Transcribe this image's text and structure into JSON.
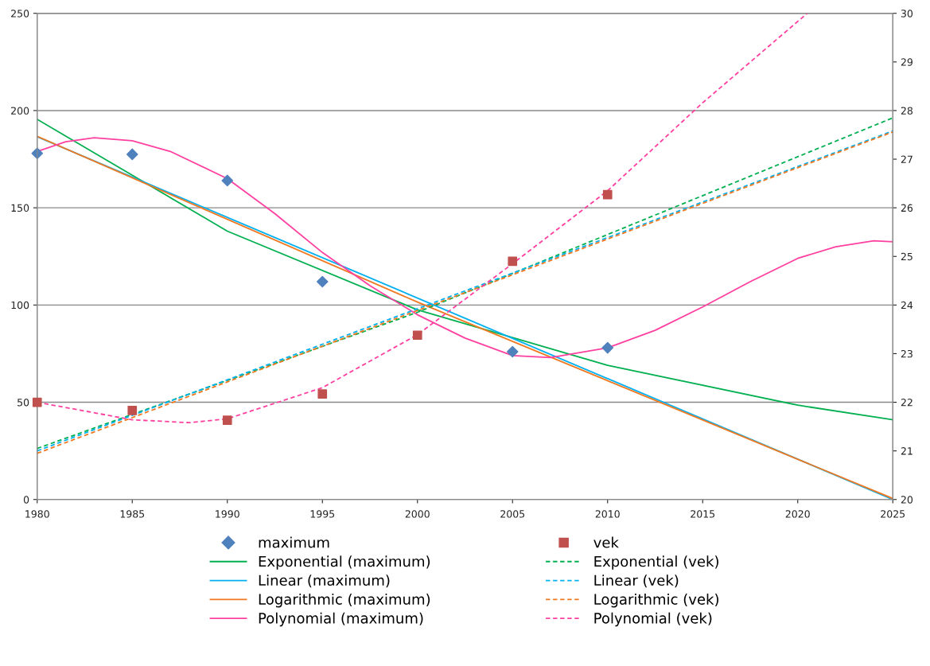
{
  "chart_data": {
    "type": "scatter",
    "xlim": [
      1980,
      2025
    ],
    "xticks": [
      1980,
      1985,
      1990,
      1995,
      2000,
      2005,
      2010,
      2015,
      2020,
      2025
    ],
    "ylim": [
      0,
      250
    ],
    "yticks": [
      0,
      50,
      100,
      150,
      200,
      250
    ],
    "y2lim": [
      20,
      30
    ],
    "y2ticks": [
      20,
      21,
      22,
      23,
      24,
      25,
      26,
      27,
      28,
      29,
      30
    ],
    "grid": "y",
    "legend": "bottom",
    "series": [
      {
        "name": "maximum",
        "marker": "diamond",
        "color": "#4f81bd",
        "x": [
          1980,
          1985,
          1990,
          1995,
          2005,
          2010
        ],
        "values": [
          178,
          177.5,
          164,
          112,
          76,
          78
        ]
      },
      {
        "name": "Exponential (maximum)",
        "type": "line",
        "marker": "none",
        "line_style": "solid",
        "color": "#00b050",
        "x": [
          1980,
          1990,
          2000,
          2010,
          2020,
          2025
        ],
        "values": [
          195.5,
          138,
          97.5,
          69,
          48.5,
          41
        ]
      },
      {
        "name": "Linear (maximum)",
        "type": "line",
        "marker": "none",
        "line_style": "solid",
        "color": "#00b0f0",
        "x": [
          1980,
          2025
        ],
        "values": [
          186.5,
          0
        ]
      },
      {
        "name": "Logarithmic (maximum)",
        "type": "line",
        "marker": "none",
        "line_style": "solid",
        "color": "#f07820",
        "x": [
          1980,
          2000,
          2025
        ],
        "values": [
          186.7,
          101.5,
          0.5
        ]
      },
      {
        "name": "Polynomial (maximum)",
        "type": "line",
        "marker": "none",
        "line_style": "solid",
        "color": "#ff40a0",
        "x": [
          1980,
          1981.5,
          1983,
          1985,
          1987,
          1990,
          1992.5,
          1995,
          1997.5,
          2000,
          2002.5,
          2005,
          2007,
          2010,
          2012.5,
          2015,
          2017.5,
          2020,
          2022,
          2024,
          2025
        ],
        "values": [
          179,
          184,
          186,
          184.5,
          179,
          165,
          147,
          127,
          110,
          95,
          83,
          74,
          73,
          78,
          87,
          99,
          112,
          124,
          130,
          133,
          132.5
        ]
      },
      {
        "name": "vek",
        "axis": "y2",
        "marker": "square",
        "color": "#c0504d",
        "x": [
          1980,
          1985,
          1990,
          1995,
          2000,
          2005,
          2010
        ],
        "values": [
          22.0,
          21.83,
          21.63,
          22.17,
          23.38,
          24.9,
          26.27
        ]
      },
      {
        "name": "Exponential (vek)",
        "type": "line",
        "axis": "y2",
        "marker": "none",
        "line_style": "dashed",
        "color": "#00b050",
        "x": [
          1980,
          2000,
          2025
        ],
        "values": [
          21.05,
          23.85,
          27.85
        ]
      },
      {
        "name": "Linear (vek)",
        "type": "line",
        "axis": "y2",
        "marker": "none",
        "line_style": "dashed",
        "color": "#00b0f0",
        "x": [
          1980,
          2025
        ],
        "values": [
          21.0,
          27.58
        ]
      },
      {
        "name": "Logarithmic (vek)",
        "type": "line",
        "axis": "y2",
        "marker": "none",
        "line_style": "dashed",
        "color": "#f07820",
        "x": [
          1980,
          2025
        ],
        "values": [
          20.95,
          27.56
        ]
      },
      {
        "name": "Polynomial (vek)",
        "type": "line",
        "axis": "y2",
        "marker": "none",
        "line_style": "dashed",
        "color": "#ff40a0",
        "x": [
          1980,
          1985,
          1988,
          1990,
          1995,
          2000,
          2005,
          2010,
          2015,
          2020.5
        ],
        "values": [
          22.0,
          21.64,
          21.58,
          21.66,
          22.3,
          23.39,
          24.85,
          26.35,
          28.16,
          30
        ]
      }
    ]
  }
}
